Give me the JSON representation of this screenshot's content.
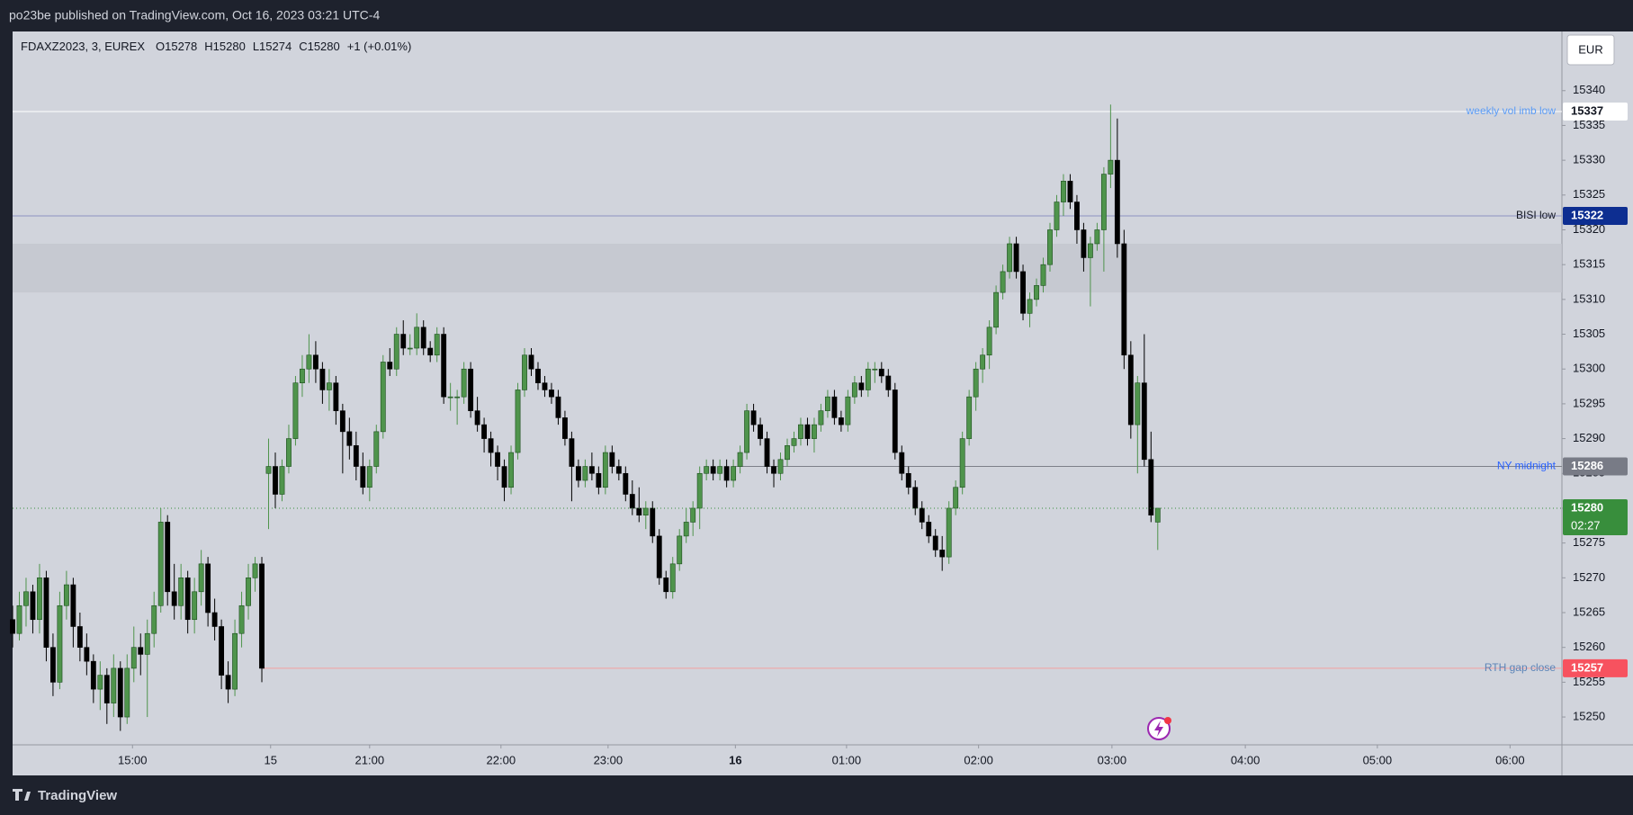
{
  "header": {
    "published": "po23be published on TradingView.com, Oct 16, 2023 03:21 UTC-4",
    "footer": "TradingView"
  },
  "chart_data": {
    "type": "candlestick",
    "legend": [
      "FDAXZ2023, 3, EUREX",
      "O15278",
      "H15280",
      "L15274",
      "C15280",
      "+1 (+0.01%)"
    ],
    "currency": "EUR",
    "up_color": "#4f944c",
    "down_color": "#000000",
    "ylim": [
      15246,
      15348.5
    ],
    "yticks": [
      15250,
      15255,
      15260,
      15265,
      15270,
      15275,
      15280,
      15285,
      15290,
      15295,
      15300,
      15305,
      15310,
      15315,
      15320,
      15325,
      15330,
      15335,
      15340
    ],
    "xlim": [
      0,
      230
    ],
    "xticks": [
      {
        "value": 17.8,
        "label": "15:00"
      },
      {
        "value": 38.3,
        "label": "15"
      },
      {
        "value": 53.0,
        "label": "21:00"
      },
      {
        "value": 72.5,
        "label": "22:00"
      },
      {
        "value": 88.4,
        "label": "23:00"
      },
      {
        "value": 107.3,
        "label": "16",
        "bold": true
      },
      {
        "value": 123.8,
        "label": "01:00"
      },
      {
        "value": 143.4,
        "label": "02:00"
      },
      {
        "value": 163.2,
        "label": "03:00"
      },
      {
        "value": 183.0,
        "label": "04:00"
      },
      {
        "value": 202.6,
        "label": "05:00"
      },
      {
        "value": 222.3,
        "label": "06:00"
      }
    ],
    "zone": {
      "low": 15311,
      "high": 15318
    },
    "annotations": [
      {
        "label": "weekly vol imb low",
        "value": 15337,
        "start": 0,
        "line_color": "#ffffff",
        "label_color": "#5b9cf6",
        "tag_color": "#ffffff",
        "tag_text_color": "#131722"
      },
      {
        "label": "BISI low",
        "value": 15322,
        "start": 0,
        "line_color": "#8d92c2",
        "label_color": "#131722",
        "tag_color": "#0d2e91",
        "tag_text_color": "#ffffff"
      },
      {
        "label": "NY midnight",
        "value": 15286,
        "start": 107.3,
        "line_color": "#7d8089",
        "label_color": "#2962ff",
        "tag_color": "#787b86",
        "tag_text_color": "#ffffff"
      },
      {
        "label": "RTH gap close",
        "value": 15257,
        "start": 37,
        "line_color": "#f2a0a0",
        "label_color": "#5b84b8",
        "tag_color": "#f7525f",
        "tag_text_color": "#ffffff"
      }
    ],
    "last_price": 15280,
    "countdown": "02:27",
    "last_color": "#388e3c",
    "x": [
      0,
      1,
      2,
      3,
      4,
      5,
      6,
      7,
      8,
      9,
      10,
      11,
      12,
      13,
      14,
      15,
      16,
      17,
      18,
      19,
      20,
      21,
      22,
      23,
      24,
      25,
      26,
      27,
      28,
      29,
      30,
      31,
      32,
      33,
      34,
      35,
      36,
      37,
      38,
      39,
      40,
      41,
      42,
      43,
      44,
      45,
      46,
      47,
      48,
      49,
      50,
      51,
      52,
      53,
      54,
      55,
      56,
      57,
      58,
      59,
      60,
      61,
      62,
      63,
      64,
      65,
      66,
      67,
      68,
      69,
      70,
      71,
      72,
      73,
      74,
      75,
      76,
      77,
      78,
      79,
      80,
      81,
      82,
      83,
      84,
      85,
      86,
      87,
      88,
      89,
      90,
      91,
      92,
      93,
      94,
      95,
      96,
      97,
      98,
      99,
      100,
      101,
      102,
      103,
      104,
      105,
      106,
      107,
      108,
      109,
      110,
      111,
      112,
      113,
      114,
      115,
      116,
      117,
      118,
      119,
      120,
      121,
      122,
      123,
      124,
      125,
      126,
      127,
      128,
      129,
      130,
      131,
      132,
      133,
      134,
      135,
      136,
      137,
      138,
      139,
      140,
      141,
      142,
      143,
      144,
      145,
      146,
      147,
      148,
      149,
      150,
      151,
      152,
      153,
      154,
      155,
      156,
      157,
      158,
      159,
      160,
      161,
      162,
      163,
      164,
      165,
      166,
      167,
      168,
      169,
      170
    ],
    "ohlc": [
      [
        15264,
        15266,
        15260,
        15262
      ],
      [
        15262,
        15268,
        15261,
        15266
      ],
      [
        15266,
        15270,
        15263,
        15268
      ],
      [
        15268,
        15269,
        15262,
        15264
      ],
      [
        15264,
        15272,
        15262,
        15270
      ],
      [
        15270,
        15271,
        15258,
        15260
      ],
      [
        15260,
        15262,
        15253,
        15255
      ],
      [
        15255,
        15268,
        15254,
        15266
      ],
      [
        15266,
        15271,
        15264,
        15269
      ],
      [
        15269,
        15270,
        15260,
        15263
      ],
      [
        15263,
        15265,
        15258,
        15260
      ],
      [
        15260,
        15262,
        15256,
        15258
      ],
      [
        15258,
        15259,
        15252,
        15254
      ],
      [
        15254,
        15258,
        15251,
        15256
      ],
      [
        15256,
        15257,
        15249,
        15252
      ],
      [
        15252,
        15259,
        15250,
        15257
      ],
      [
        15257,
        15258,
        15248,
        15250
      ],
      [
        15250,
        15259,
        15249,
        15257
      ],
      [
        15257,
        15263,
        15255,
        15260
      ],
      [
        15260,
        15262,
        15256,
        15259
      ],
      [
        15259,
        15264,
        15250,
        15262
      ],
      [
        15262,
        15268,
        15260,
        15266
      ],
      [
        15266,
        15280,
        15265,
        15278
      ],
      [
        15278,
        15279,
        15266,
        15268
      ],
      [
        15268,
        15272,
        15264,
        15266
      ],
      [
        15266,
        15272,
        15264,
        15270
      ],
      [
        15270,
        15271,
        15262,
        15264
      ],
      [
        15264,
        15270,
        15262,
        15268
      ],
      [
        15268,
        15274,
        15266,
        15272
      ],
      [
        15272,
        15273,
        15263,
        15265
      ],
      [
        15265,
        15267,
        15261,
        15263
      ],
      [
        15263,
        15264,
        15254,
        15256
      ],
      [
        15256,
        15258,
        15252,
        15254
      ],
      [
        15254,
        15264,
        15253,
        15262
      ],
      [
        15262,
        15268,
        15260,
        15266
      ],
      [
        15266,
        15272,
        15264,
        15270
      ],
      [
        15270,
        15273,
        15268,
        15272
      ],
      [
        15272,
        15273,
        15255,
        15257
      ],
      [
        15285,
        15290,
        15277,
        15286
      ],
      [
        15286,
        15288,
        15280,
        15282
      ],
      [
        15282,
        15287,
        15281,
        15286
      ],
      [
        15286,
        15292,
        15285,
        15290
      ],
      [
        15290,
        15299,
        15289,
        15298
      ],
      [
        15298,
        15302,
        15296,
        15300
      ],
      [
        15300,
        15305,
        15298,
        15302
      ],
      [
        15302,
        15304,
        15298,
        15300
      ],
      [
        15300,
        15301,
        15295,
        15297
      ],
      [
        15297,
        15300,
        15294,
        15298
      ],
      [
        15298,
        15299,
        15292,
        15294
      ],
      [
        15294,
        15295,
        15285,
        15291
      ],
      [
        15291,
        15293,
        15287,
        15289
      ],
      [
        15289,
        15291,
        15284,
        15286
      ],
      [
        15286,
        15288,
        15282,
        15283
      ],
      [
        15283,
        15287,
        15281,
        15286
      ],
      [
        15286,
        15292,
        15285,
        15291
      ],
      [
        15291,
        15302,
        15290,
        15301
      ],
      [
        15301,
        15303,
        15299,
        15300
      ],
      [
        15300,
        15306,
        15299,
        15305
      ],
      [
        15305,
        15307,
        15302,
        15303
      ],
      [
        15303,
        15305,
        15302,
        15303
      ],
      [
        15303,
        15308,
        15302,
        15306
      ],
      [
        15306,
        15307,
        15302,
        15303
      ],
      [
        15303,
        15304,
        15301,
        15302
      ],
      [
        15302,
        15306,
        15301,
        15305
      ],
      [
        15305,
        15306,
        15295,
        15296
      ],
      [
        15296,
        15298,
        15294,
        15296
      ],
      [
        15296,
        15297,
        15292,
        15296
      ],
      [
        15296,
        15301,
        15295,
        15300
      ],
      [
        15300,
        15301,
        15293,
        15294
      ],
      [
        15294,
        15296,
        15291,
        15292
      ],
      [
        15292,
        15293,
        15288,
        15290
      ],
      [
        15290,
        15291,
        15286,
        15288
      ],
      [
        15288,
        15289,
        15284,
        15286
      ],
      [
        15286,
        15287,
        15281,
        15283
      ],
      [
        15283,
        15289,
        15282,
        15288
      ],
      [
        15288,
        15298,
        15287,
        15297
      ],
      [
        15297,
        15303,
        15296,
        15302
      ],
      [
        15302,
        15303,
        15299,
        15300
      ],
      [
        15300,
        15301,
        15297,
        15298
      ],
      [
        15298,
        15299,
        15296,
        15297
      ],
      [
        15297,
        15298,
        15295,
        15296
      ],
      [
        15296,
        15297,
        15292,
        15293
      ],
      [
        15293,
        15294,
        15289,
        15290
      ],
      [
        15290,
        15291,
        15281,
        15286
      ],
      [
        15286,
        15287,
        15283,
        15284
      ],
      [
        15284,
        15287,
        15283,
        15286
      ],
      [
        15286,
        15288,
        15284,
        15285
      ],
      [
        15285,
        15286,
        15282,
        15283
      ],
      [
        15283,
        15289,
        15282,
        15288
      ],
      [
        15288,
        15289,
        15285,
        15286
      ],
      [
        15286,
        15287,
        15284,
        15285
      ],
      [
        15285,
        15286,
        15281,
        15282
      ],
      [
        15282,
        15284,
        15279,
        15280
      ],
      [
        15280,
        15283,
        15278,
        15279
      ],
      [
        15279,
        15281,
        15277,
        15280
      ],
      [
        15280,
        15281,
        15275,
        15276
      ],
      [
        15276,
        15277,
        15269,
        15270
      ],
      [
        15270,
        15271,
        15267,
        15268
      ],
      [
        15268,
        15273,
        15267,
        15272
      ],
      [
        15272,
        15277,
        15271,
        15276
      ],
      [
        15276,
        15280,
        15275,
        15278
      ],
      [
        15278,
        15281,
        15276,
        15280
      ],
      [
        15280,
        15286,
        15277,
        15285
      ],
      [
        15285,
        15287,
        15284,
        15286
      ],
      [
        15286,
        15287,
        15284,
        15285
      ],
      [
        15285,
        15287,
        15284,
        15286
      ],
      [
        15286,
        15287,
        15283,
        15284
      ],
      [
        15284,
        15287,
        15283,
        15286
      ],
      [
        15286,
        15289,
        15285,
        15288
      ],
      [
        15288,
        15295,
        15287,
        15294
      ],
      [
        15294,
        15295,
        15291,
        15292
      ],
      [
        15292,
        15293,
        15289,
        15290
      ],
      [
        15290,
        15291,
        15285,
        15286
      ],
      [
        15286,
        15287,
        15283,
        15285
      ],
      [
        15285,
        15288,
        15284,
        15287
      ],
      [
        15287,
        15290,
        15286,
        15289
      ],
      [
        15289,
        15291,
        15288,
        15290
      ],
      [
        15290,
        15293,
        15289,
        15292
      ],
      [
        15292,
        15293,
        15289,
        15290
      ],
      [
        15290,
        15293,
        15288,
        15292
      ],
      [
        15292,
        15295,
        15291,
        15294
      ],
      [
        15294,
        15297,
        15293,
        15296
      ],
      [
        15296,
        15297,
        15292,
        15293
      ],
      [
        15293,
        15294,
        15291,
        15292
      ],
      [
        15292,
        15297,
        15291,
        15296
      ],
      [
        15296,
        15299,
        15295,
        15298
      ],
      [
        15298,
        15299,
        15296,
        15297
      ],
      [
        15297,
        15301,
        15296,
        15300
      ],
      [
        15300,
        15301,
        15298,
        15300
      ],
      [
        15300,
        15301,
        15298,
        15299
      ],
      [
        15299,
        15300,
        15296,
        15297
      ],
      [
        15297,
        15298,
        15287,
        15288
      ],
      [
        15288,
        15289,
        15284,
        15285
      ],
      [
        15285,
        15286,
        15282,
        15283
      ],
      [
        15283,
        15284,
        15279,
        15280
      ],
      [
        15280,
        15281,
        15277,
        15278
      ],
      [
        15278,
        15279,
        15275,
        15276
      ],
      [
        15276,
        15277,
        15273,
        15274
      ],
      [
        15274,
        15276,
        15271,
        15273
      ],
      [
        15273,
        15281,
        15272,
        15280
      ],
      [
        15280,
        15284,
        15279,
        15283
      ],
      [
        15283,
        15291,
        15282,
        15290
      ],
      [
        15290,
        15297,
        15289,
        15296
      ],
      [
        15296,
        15301,
        15294,
        15300
      ],
      [
        15300,
        15303,
        15298,
        15302
      ],
      [
        15302,
        15307,
        15300,
        15306
      ],
      [
        15306,
        15312,
        15305,
        15311
      ],
      [
        15311,
        15315,
        15310,
        15314
      ],
      [
        15314,
        15319,
        15313,
        15318
      ],
      [
        15318,
        15319,
        15313,
        15314
      ],
      [
        15314,
        15315,
        15307,
        15308
      ],
      [
        15308,
        15311,
        15306,
        15310
      ],
      [
        15310,
        15313,
        15309,
        15312
      ],
      [
        15312,
        15316,
        15311,
        15315
      ],
      [
        15315,
        15321,
        15314,
        15320
      ],
      [
        15320,
        15325,
        15319,
        15324
      ],
      [
        15324,
        15328,
        15322,
        15327
      ],
      [
        15327,
        15328,
        15323,
        15324
      ],
      [
        15324,
        15325,
        15318,
        15320
      ],
      [
        15320,
        15321,
        15314,
        15316
      ],
      [
        15316,
        15319,
        15309,
        15318
      ],
      [
        15318,
        15321,
        15317,
        15320
      ],
      [
        15320,
        15329,
        15314,
        15328
      ],
      [
        15328,
        15338,
        15326,
        15330
      ],
      [
        15330,
        15336,
        15316,
        15318
      ],
      [
        15318,
        15320,
        15300,
        15302
      ],
      [
        15302,
        15304,
        15290,
        15292
      ],
      [
        15292,
        15299,
        15285,
        15298
      ],
      [
        15298,
        15305,
        15286,
        15287
      ],
      [
        15287,
        15291,
        15278,
        15279
      ],
      [
        15278,
        15280,
        15274,
        15280
      ]
    ]
  }
}
